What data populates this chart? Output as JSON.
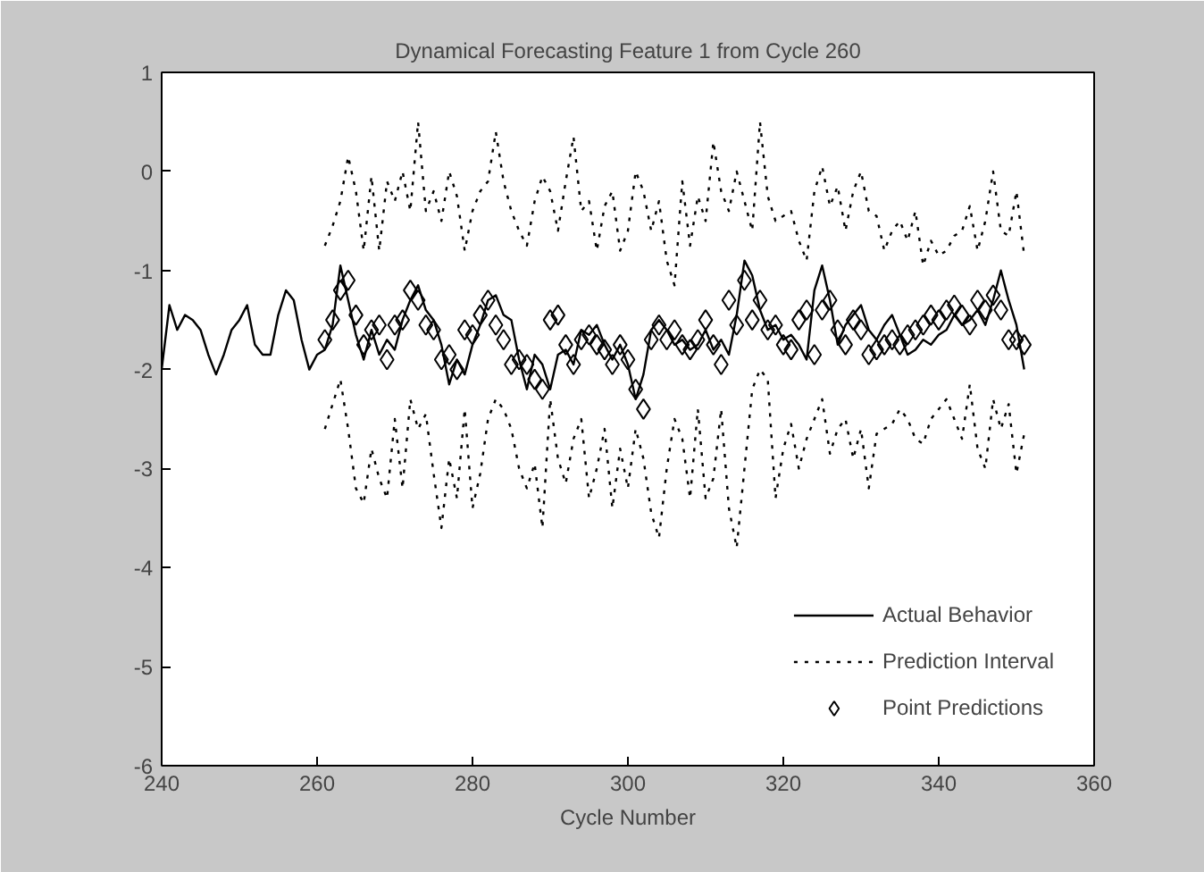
{
  "chart_data": {
    "type": "line",
    "title": "Dynamical Forecasting Feature 1 from Cycle 260",
    "xlabel": "Cycle Number",
    "x": [
      261,
      262,
      263,
      264,
      265,
      266,
      267,
      268,
      269,
      270,
      271,
      272,
      273,
      274,
      275,
      276,
      277,
      278,
      279,
      280,
      281,
      282,
      283,
      284,
      285,
      286,
      287,
      288,
      289,
      290,
      291,
      292,
      293,
      294,
      295,
      296,
      297,
      298,
      299,
      300,
      301,
      302,
      303,
      304,
      305,
      306,
      307,
      308,
      309,
      310,
      311,
      312,
      313,
      314,
      315,
      316,
      317,
      318,
      319,
      320,
      321,
      322,
      323,
      324,
      325,
      326,
      327,
      328,
      329,
      330,
      331,
      332,
      333,
      334,
      335,
      336,
      337,
      338,
      339,
      340,
      341,
      342,
      343,
      344,
      345,
      346,
      347,
      348,
      349,
      350,
      351
    ],
    "series": [
      {
        "name": "Actual Behavior",
        "line_style": "solid",
        "marker": "none",
        "color": "#000000",
        "x": [
          240,
          241,
          242,
          243,
          244,
          245,
          246,
          247,
          248,
          249,
          250,
          251,
          252,
          253,
          254,
          255,
          256,
          257,
          258,
          259,
          260,
          261,
          262,
          263,
          264,
          265,
          266,
          267,
          268,
          269,
          270,
          271,
          272,
          273,
          274,
          275,
          276,
          277,
          278,
          279,
          280,
          281,
          282,
          283,
          284,
          285,
          286,
          287,
          288,
          289,
          290,
          291,
          292,
          293,
          294,
          295,
          296,
          297,
          298,
          299,
          300,
          301,
          302,
          303,
          304,
          305,
          306,
          307,
          308,
          309,
          310,
          311,
          312,
          313,
          314,
          315,
          316,
          317,
          318,
          319,
          320,
          321,
          322,
          323,
          324,
          325,
          326,
          327,
          328,
          329,
          330,
          331,
          332,
          333,
          334,
          335,
          336,
          337,
          338,
          339,
          340,
          341,
          342,
          343,
          344,
          345,
          346,
          347,
          348,
          349,
          350,
          351
        ],
        "values": [
          -2.0,
          -1.35,
          -1.6,
          -1.45,
          -1.5,
          -1.6,
          -1.85,
          -2.05,
          -1.85,
          -1.6,
          -1.5,
          -1.35,
          -1.75,
          -1.85,
          -1.85,
          -1.45,
          -1.2,
          -1.3,
          -1.7,
          -2.0,
          -1.85,
          -1.8,
          -1.55,
          -0.95,
          -1.3,
          -1.65,
          -1.9,
          -1.6,
          -1.85,
          -1.7,
          -1.8,
          -1.5,
          -1.3,
          -1.15,
          -1.4,
          -1.5,
          -1.75,
          -2.15,
          -1.9,
          -2.05,
          -1.75,
          -1.55,
          -1.3,
          -1.25,
          -1.45,
          -1.5,
          -1.9,
          -2.2,
          -1.85,
          -1.95,
          -2.2,
          -1.85,
          -1.8,
          -1.95,
          -1.6,
          -1.65,
          -1.55,
          -1.75,
          -1.9,
          -1.75,
          -1.95,
          -2.3,
          -2.05,
          -1.6,
          -1.5,
          -1.6,
          -1.75,
          -1.7,
          -1.8,
          -1.75,
          -1.6,
          -1.8,
          -1.7,
          -1.85,
          -1.45,
          -0.9,
          -1.05,
          -1.4,
          -1.6,
          -1.55,
          -1.7,
          -1.65,
          -1.75,
          -1.9,
          -1.2,
          -0.95,
          -1.3,
          -1.75,
          -1.55,
          -1.45,
          -1.35,
          -1.6,
          -1.7,
          -1.55,
          -1.45,
          -1.65,
          -1.85,
          -1.8,
          -1.7,
          -1.75,
          -1.65,
          -1.6,
          -1.45,
          -1.55,
          -1.5,
          -1.4,
          -1.55,
          -1.3,
          -1.0,
          -1.3,
          -1.55,
          -2.0
        ]
      },
      {
        "name": "Prediction Interval",
        "line_style": "dotted",
        "marker": "none",
        "color": "#000000",
        "values": [
          -0.75,
          -0.55,
          -0.3,
          0.15,
          -0.2,
          -0.8,
          -0.05,
          -0.8,
          -0.1,
          -0.3,
          0.0,
          -0.4,
          0.5,
          -0.4,
          -0.2,
          -0.5,
          0.0,
          -0.25,
          -0.8,
          -0.4,
          -0.2,
          -0.1,
          0.4,
          -0.1,
          -0.4,
          -0.6,
          -0.75,
          -0.3,
          -0.05,
          -0.2,
          -0.6,
          -0.1,
          0.35,
          -0.4,
          -0.3,
          -0.8,
          -0.35,
          -0.2,
          -0.8,
          -0.6,
          0.0,
          -0.2,
          -0.6,
          -0.3,
          -0.9,
          -1.15,
          -0.1,
          -0.75,
          -0.25,
          -0.5,
          0.3,
          -0.2,
          -0.4,
          0.0,
          -0.3,
          -0.6,
          0.5,
          -0.25,
          -0.5,
          -0.45,
          -0.4,
          -0.7,
          -0.9,
          -0.2,
          0.05,
          -0.35,
          -0.15,
          -0.6,
          -0.2,
          0.0,
          -0.4,
          -0.45,
          -0.8,
          -0.6,
          -0.5,
          -0.7,
          -0.4,
          -0.95,
          -0.7,
          -0.85,
          -0.8,
          -0.65,
          -0.6,
          -0.35,
          -0.8,
          -0.5,
          0.0,
          -0.6,
          -0.65,
          -0.2,
          -0.85
        ]
      },
      {
        "line_style": "dotted",
        "marker": "none",
        "color": "#000000",
        "values": [
          -2.6,
          -2.35,
          -2.1,
          -2.6,
          -3.2,
          -3.35,
          -2.8,
          -3.1,
          -3.3,
          -2.5,
          -3.2,
          -2.3,
          -2.6,
          -2.45,
          -3.05,
          -3.6,
          -2.9,
          -3.3,
          -2.4,
          -3.4,
          -3.05,
          -2.5,
          -2.3,
          -2.4,
          -2.6,
          -3.0,
          -3.2,
          -2.95,
          -3.6,
          -2.3,
          -2.9,
          -3.15,
          -2.7,
          -2.5,
          -3.3,
          -3.0,
          -2.6,
          -3.4,
          -2.8,
          -3.2,
          -2.6,
          -2.9,
          -3.45,
          -3.7,
          -3.0,
          -2.5,
          -2.7,
          -3.3,
          -2.4,
          -3.3,
          -3.1,
          -2.4,
          -3.4,
          -3.8,
          -3.0,
          -2.2,
          -2.0,
          -2.1,
          -3.3,
          -2.8,
          -2.55,
          -3.0,
          -2.7,
          -2.5,
          -2.3,
          -2.85,
          -2.6,
          -2.5,
          -2.9,
          -2.6,
          -3.2,
          -2.65,
          -2.6,
          -2.55,
          -2.4,
          -2.5,
          -2.7,
          -2.75,
          -2.5,
          -2.4,
          -2.3,
          -2.5,
          -2.7,
          -2.15,
          -2.8,
          -3.0,
          -2.3,
          -2.6,
          -2.35,
          -3.05,
          -2.65
        ]
      },
      {
        "name": "Point Predictions",
        "type": "scatter",
        "marker": "diamond",
        "color": "#000000",
        "values": [
          -1.7,
          -1.5,
          -1.2,
          -1.1,
          -1.45,
          -1.75,
          -1.6,
          -1.55,
          -1.9,
          -1.55,
          -1.5,
          -1.2,
          -1.3,
          -1.55,
          -1.6,
          -1.9,
          -1.85,
          -2.0,
          -1.6,
          -1.65,
          -1.45,
          -1.3,
          -1.55,
          -1.7,
          -1.95,
          -1.9,
          -1.95,
          -2.1,
          -2.2,
          -1.5,
          -1.45,
          -1.75,
          -1.95,
          -1.7,
          -1.65,
          -1.75,
          -1.8,
          -1.95,
          -1.75,
          -1.9,
          -2.2,
          -2.4,
          -1.7,
          -1.55,
          -1.7,
          -1.6,
          -1.75,
          -1.8,
          -1.7,
          -1.5,
          -1.75,
          -1.95,
          -1.3,
          -1.55,
          -1.1,
          -1.5,
          -1.3,
          -1.6,
          -1.55,
          -1.75,
          -1.8,
          -1.5,
          -1.4,
          -1.85,
          -1.4,
          -1.3,
          -1.6,
          -1.75,
          -1.5,
          -1.6,
          -1.85,
          -1.8,
          -1.75,
          -1.7,
          -1.75,
          -1.65,
          -1.6,
          -1.55,
          -1.45,
          -1.5,
          -1.4,
          -1.35,
          -1.45,
          -1.55,
          -1.3,
          -1.4,
          -1.25,
          -1.4,
          -1.7,
          -1.7,
          -1.75
        ]
      }
    ],
    "xlim": [
      240,
      360
    ],
    "xticks": [
      240,
      260,
      280,
      300,
      320,
      340,
      360
    ],
    "ylim": [
      -6,
      1
    ],
    "yticks": [
      -6,
      -5,
      -4,
      -3,
      -2,
      -1,
      0,
      1
    ],
    "grid": false,
    "legend": "bottom right"
  }
}
